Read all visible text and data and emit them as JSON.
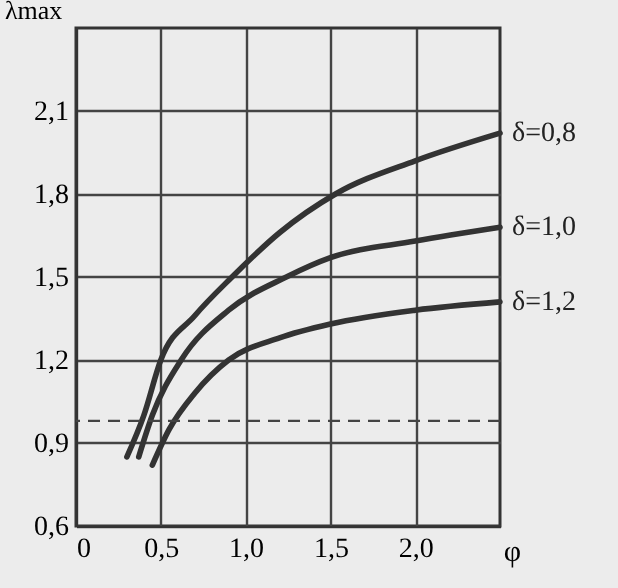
{
  "chart_data": {
    "type": "line",
    "xlabel": "φ",
    "ylabel": "λmax",
    "xlim": [
      0,
      2.5
    ],
    "ylim": [
      0.6,
      2.4
    ],
    "xticks": [
      0,
      {
        "value": 0.5,
        "label": "0,5"
      },
      {
        "value": 1.0,
        "label": "1,0"
      },
      {
        "value": 1.5,
        "label": "1,5"
      },
      {
        "value": 2.0,
        "label": "2,0"
      }
    ],
    "yticks": [
      {
        "value": 0.6,
        "label": "0,6"
      },
      {
        "value": 0.9,
        "label": "0,9"
      },
      {
        "value": 1.2,
        "label": "1,2"
      },
      {
        "value": 1.5,
        "label": "1,5"
      },
      {
        "value": 1.8,
        "label": "1,8"
      },
      {
        "value": 2.1,
        "label": "2,1"
      }
    ],
    "grid": true,
    "legend": false,
    "marker": "none",
    "line_style": "solid",
    "series": [
      {
        "name": "δ=0,8",
        "color": "#333333",
        "x": [
          0.3,
          0.4,
          0.5,
          0.7,
          0.92,
          1.2,
          1.53,
          2.0,
          2.5
        ],
        "values": [
          0.85,
          1.0,
          1.2,
          1.36,
          1.5,
          1.66,
          1.8,
          1.92,
          2.02
        ]
      },
      {
        "name": "δ=1,0",
        "color": "#333333",
        "x": [
          0.37,
          0.45,
          0.62,
          0.9,
          1.24,
          1.5,
          2.0,
          2.5
        ],
        "values": [
          0.85,
          1.0,
          1.2,
          1.38,
          1.5,
          1.57,
          1.63,
          1.68
        ]
      },
      {
        "name": "δ=1,2",
        "color": "#333333",
        "x": [
          0.45,
          0.55,
          0.7,
          0.9,
          1.2,
          1.5,
          2.0,
          2.5
        ],
        "values": [
          0.82,
          0.95,
          1.08,
          1.2,
          1.28,
          1.33,
          1.38,
          1.41
        ]
      }
    ],
    "ref_lines": [
      {
        "axis": "y",
        "value": 0.98,
        "label": null,
        "color": "#444444",
        "line_style": "dashed"
      }
    ]
  }
}
